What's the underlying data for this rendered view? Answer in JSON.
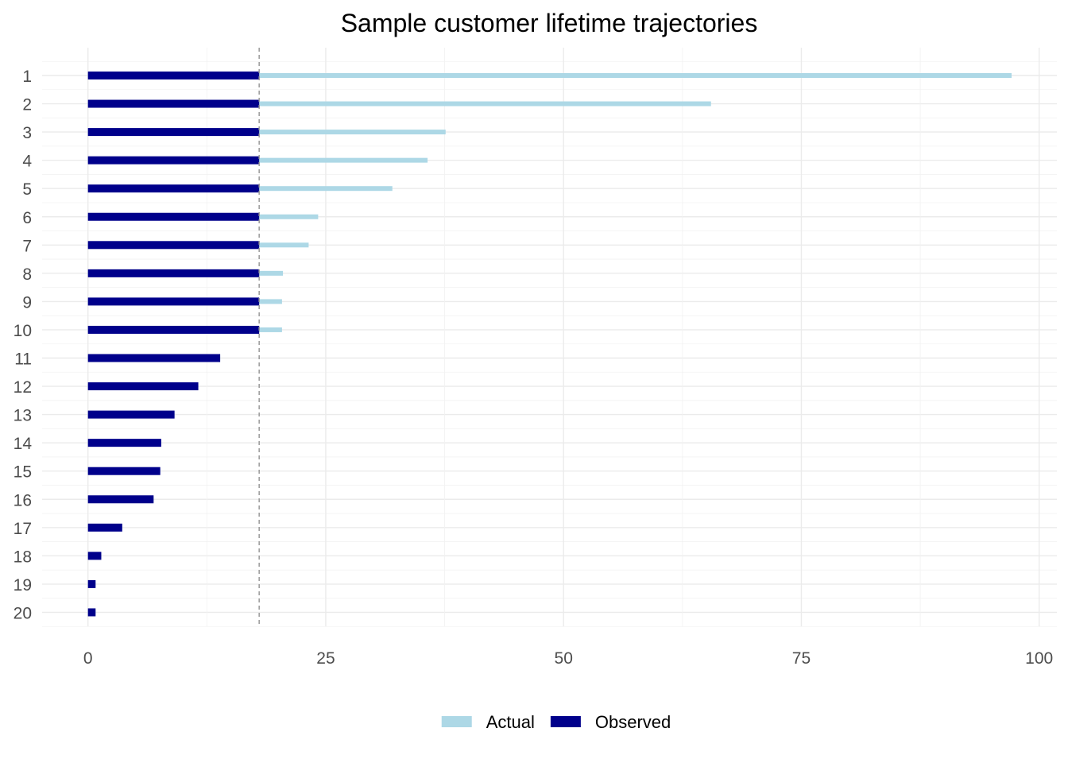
{
  "chart_data": {
    "type": "bar",
    "orientation": "horizontal",
    "title": "Sample customer lifetime trajectories",
    "xlabel": "",
    "ylabel": "",
    "categories": [
      "1",
      "2",
      "3",
      "4",
      "5",
      "6",
      "7",
      "8",
      "9",
      "10",
      "11",
      "12",
      "13",
      "14",
      "15",
      "16",
      "17",
      "18",
      "19",
      "20"
    ],
    "series": [
      {
        "name": "Actual",
        "color": "#add8e6",
        "values": [
          97.1,
          65.5,
          37.6,
          35.7,
          32.0,
          24.2,
          23.2,
          20.5,
          20.4,
          20.4,
          13.9,
          11.6,
          9.1,
          7.7,
          7.6,
          6.9,
          3.6,
          1.4,
          0.8,
          0.8
        ]
      },
      {
        "name": "Observed",
        "color": "#00008b",
        "values": [
          18.0,
          18.0,
          18.0,
          18.0,
          18.0,
          18.0,
          18.0,
          18.0,
          18.0,
          18.0,
          13.9,
          11.6,
          9.1,
          7.7,
          7.6,
          6.9,
          3.6,
          1.4,
          0.8,
          0.8
        ]
      }
    ],
    "x_ticks": [
      "0",
      "25",
      "50",
      "75",
      "100"
    ],
    "x_tick_values": [
      0,
      25,
      50,
      75,
      100
    ],
    "xlim": [
      -4.8,
      102
    ],
    "reference_line": {
      "x": 18,
      "style": "dashed",
      "color": "#999999"
    },
    "grid": true,
    "legend_position": "bottom",
    "legend": [
      {
        "label": "Actual",
        "color": "#add8e6"
      },
      {
        "label": "Observed",
        "color": "#00008b"
      }
    ]
  }
}
